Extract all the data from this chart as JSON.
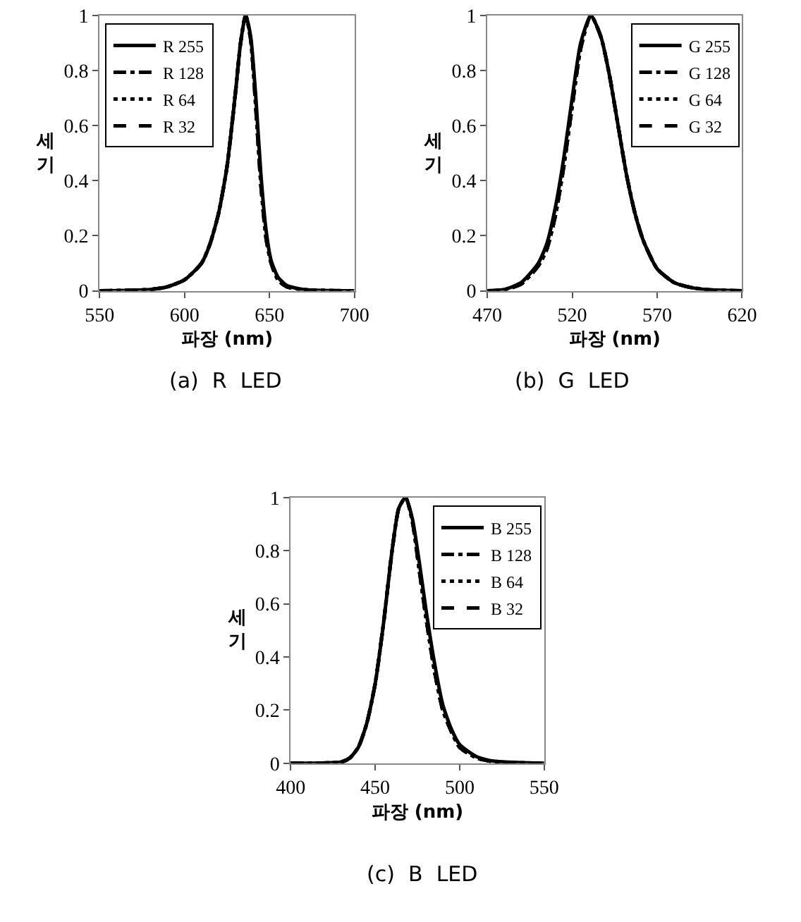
{
  "chart_data": [
    {
      "type": "line",
      "title": "(a) R LED",
      "xlabel": "파장 (nm)",
      "ylabel": "세기",
      "xlim": [
        550,
        700
      ],
      "xticks": [
        550,
        600,
        650,
        700
      ],
      "ylim": [
        0,
        1
      ],
      "yticks": [
        0,
        0.2,
        0.4,
        0.6,
        0.8,
        1
      ],
      "legend": "top left",
      "series": [
        {
          "name": "R 255",
          "color": "#000000",
          "line_style": "solid",
          "x": [
            550,
            580,
            590,
            600,
            610,
            615,
            620,
            625,
            630,
            633,
            636,
            639,
            642,
            645,
            648,
            651,
            655,
            660,
            670,
            700
          ],
          "values": [
            0,
            0.005,
            0.015,
            0.04,
            0.1,
            0.17,
            0.28,
            0.45,
            0.72,
            0.9,
            1.0,
            0.92,
            0.7,
            0.42,
            0.22,
            0.11,
            0.05,
            0.02,
            0.005,
            0
          ]
        },
        {
          "name": "R 128",
          "color": "#000000",
          "line_style": "dashdot",
          "x": [
            550,
            580,
            590,
            600,
            610,
            615,
            620,
            625,
            630,
            633,
            636,
            639,
            642,
            645,
            648,
            651,
            655,
            660,
            670,
            700
          ],
          "values": [
            0,
            0.005,
            0.015,
            0.04,
            0.1,
            0.17,
            0.28,
            0.45,
            0.72,
            0.9,
            1.0,
            0.91,
            0.66,
            0.38,
            0.19,
            0.1,
            0.04,
            0.015,
            0.004,
            0
          ]
        },
        {
          "name": "R 64",
          "color": "#000000",
          "line_style": "dotted",
          "x": [
            550,
            580,
            590,
            600,
            610,
            615,
            620,
            625,
            630,
            633,
            636,
            639,
            642,
            645,
            648,
            651,
            655,
            660,
            670,
            700
          ],
          "values": [
            0,
            0.005,
            0.015,
            0.04,
            0.1,
            0.17,
            0.28,
            0.45,
            0.72,
            0.9,
            1.0,
            0.91,
            0.67,
            0.39,
            0.2,
            0.1,
            0.04,
            0.015,
            0.004,
            0
          ]
        },
        {
          "name": "R 32",
          "color": "#000000",
          "line_style": "dashed",
          "x": [
            550,
            580,
            590,
            600,
            610,
            615,
            620,
            625,
            630,
            633,
            636,
            639,
            642,
            645,
            648,
            651,
            655,
            660,
            670,
            700
          ],
          "values": [
            0,
            0.005,
            0.015,
            0.04,
            0.1,
            0.17,
            0.28,
            0.45,
            0.72,
            0.9,
            1.0,
            0.91,
            0.66,
            0.38,
            0.19,
            0.1,
            0.04,
            0.015,
            0.004,
            0
          ]
        }
      ]
    },
    {
      "type": "line",
      "title": "(b) G LED",
      "xlabel": "파장 (nm)",
      "ylabel": "세기",
      "xlim": [
        470,
        620
      ],
      "xticks": [
        470,
        520,
        570,
        620
      ],
      "ylim": [
        0,
        1
      ],
      "yticks": [
        0,
        0.2,
        0.4,
        0.6,
        0.8,
        1
      ],
      "legend": "top right",
      "series": [
        {
          "name": "G 255",
          "color": "#000000",
          "line_style": "solid",
          "x": [
            470,
            480,
            490,
            500,
            505,
            510,
            515,
            520,
            525,
            531,
            537,
            542,
            547,
            552,
            557,
            562,
            570,
            580,
            590,
            600,
            620
          ],
          "values": [
            0,
            0.005,
            0.03,
            0.1,
            0.17,
            0.3,
            0.48,
            0.7,
            0.9,
            1.0,
            0.92,
            0.78,
            0.6,
            0.42,
            0.28,
            0.18,
            0.08,
            0.03,
            0.012,
            0.004,
            0
          ]
        },
        {
          "name": "G 128",
          "color": "#000000",
          "line_style": "dashdot",
          "x": [
            470,
            480,
            490,
            500,
            505,
            510,
            515,
            520,
            525,
            531,
            537,
            542,
            547,
            552,
            557,
            562,
            570,
            580,
            590,
            600,
            620
          ],
          "values": [
            0,
            0.004,
            0.025,
            0.09,
            0.15,
            0.27,
            0.45,
            0.67,
            0.88,
            1.0,
            0.92,
            0.78,
            0.6,
            0.42,
            0.28,
            0.18,
            0.08,
            0.03,
            0.012,
            0.004,
            0
          ]
        },
        {
          "name": "G 64",
          "color": "#000000",
          "line_style": "dotted",
          "x": [
            470,
            480,
            490,
            500,
            505,
            510,
            515,
            520,
            525,
            531,
            537,
            542,
            547,
            552,
            557,
            562,
            570,
            580,
            590,
            600,
            620
          ],
          "values": [
            0,
            0.004,
            0.025,
            0.09,
            0.15,
            0.27,
            0.45,
            0.67,
            0.88,
            1.0,
            0.92,
            0.78,
            0.6,
            0.42,
            0.28,
            0.18,
            0.08,
            0.03,
            0.012,
            0.004,
            0
          ]
        },
        {
          "name": "G 32",
          "color": "#000000",
          "line_style": "dashed",
          "x": [
            470,
            480,
            490,
            500,
            505,
            510,
            515,
            520,
            525,
            531,
            537,
            542,
            547,
            552,
            557,
            562,
            570,
            580,
            590,
            600,
            620
          ],
          "values": [
            0,
            0.004,
            0.025,
            0.09,
            0.15,
            0.27,
            0.45,
            0.67,
            0.88,
            1.0,
            0.92,
            0.78,
            0.6,
            0.42,
            0.28,
            0.18,
            0.08,
            0.03,
            0.012,
            0.004,
            0
          ]
        }
      ]
    },
    {
      "type": "line",
      "title": "(c) B LED",
      "xlabel": "파장 (nm)",
      "ylabel": "세기",
      "xlim": [
        400,
        550
      ],
      "xticks": [
        400,
        450,
        500,
        550
      ],
      "ylim": [
        0,
        1
      ],
      "yticks": [
        0,
        0.2,
        0.4,
        0.6,
        0.8,
        1
      ],
      "legend": "top right",
      "series": [
        {
          "name": "B 255",
          "color": "#000000",
          "line_style": "solid",
          "x": [
            400,
            430,
            435,
            440,
            445,
            450,
            455,
            460,
            464,
            468,
            472,
            476,
            480,
            485,
            490,
            495,
            500,
            510,
            520,
            550
          ],
          "values": [
            0,
            0.005,
            0.02,
            0.06,
            0.15,
            0.3,
            0.53,
            0.8,
            0.96,
            1.0,
            0.92,
            0.76,
            0.58,
            0.38,
            0.22,
            0.13,
            0.07,
            0.025,
            0.008,
            0
          ]
        },
        {
          "name": "B 128",
          "color": "#000000",
          "line_style": "dashdot",
          "x": [
            400,
            430,
            435,
            440,
            445,
            450,
            455,
            460,
            464,
            468,
            472,
            476,
            480,
            485,
            490,
            495,
            500,
            510,
            520,
            550
          ],
          "values": [
            0,
            0.005,
            0.02,
            0.06,
            0.15,
            0.3,
            0.53,
            0.8,
            0.96,
            1.0,
            0.91,
            0.73,
            0.55,
            0.35,
            0.2,
            0.12,
            0.06,
            0.02,
            0.006,
            0
          ]
        },
        {
          "name": "B 64",
          "color": "#000000",
          "line_style": "dotted",
          "x": [
            400,
            430,
            435,
            440,
            445,
            450,
            455,
            460,
            464,
            468,
            472,
            476,
            480,
            485,
            490,
            495,
            500,
            510,
            520,
            550
          ],
          "values": [
            0,
            0.005,
            0.02,
            0.06,
            0.15,
            0.3,
            0.53,
            0.8,
            0.96,
            1.0,
            0.91,
            0.73,
            0.55,
            0.35,
            0.2,
            0.12,
            0.06,
            0.02,
            0.006,
            0
          ]
        },
        {
          "name": "B 32",
          "color": "#000000",
          "line_style": "dashed",
          "x": [
            400,
            430,
            435,
            440,
            445,
            450,
            455,
            460,
            464,
            468,
            472,
            476,
            480,
            485,
            490,
            495,
            500,
            510,
            520,
            550
          ],
          "values": [
            0,
            0.005,
            0.02,
            0.06,
            0.15,
            0.3,
            0.53,
            0.8,
            0.96,
            1.0,
            0.91,
            0.73,
            0.55,
            0.35,
            0.2,
            0.12,
            0.06,
            0.02,
            0.006,
            0
          ]
        }
      ]
    }
  ]
}
